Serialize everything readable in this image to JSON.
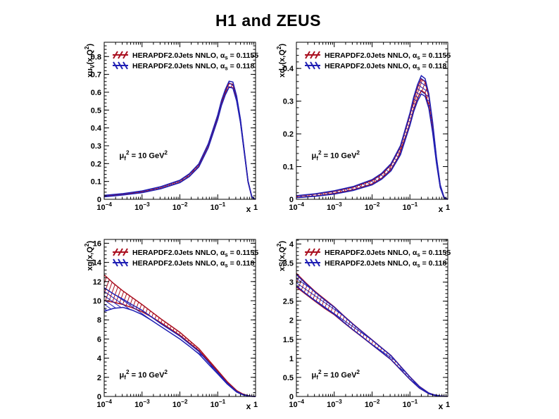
{
  "title": "H1 and ZEUS",
  "colors": {
    "red": "#aa1020",
    "blue": "#2020b4",
    "axis": "#000000",
    "background": "#ffffff"
  },
  "annotation": "μ_{f}^{2} = 10 GeV^{2}",
  "legend_labels": [
    "HERAPDF2.0Jets NNLO,  α_{s} = 0.1155",
    "HERAPDF2.0Jets NNLO,  α_{s} = 0.118"
  ],
  "x_axis": {
    "label": "x",
    "scale": "log",
    "range": [
      0.0001,
      1
    ],
    "ticks_log10": [
      -4,
      -3,
      -2,
      -1,
      0
    ],
    "tick_labels": [
      "10^{−4}",
      "10^{−3}",
      "10^{−2}",
      "10^{−1}",
      "1"
    ]
  },
  "chart_data": [
    {
      "type": "area",
      "name": "xuv",
      "ylabel": "xu_{V}(x,Q^{2})",
      "xlabel": "x",
      "ylim": [
        0,
        0.88
      ],
      "ann_y": 0.72,
      "yticks": [
        0,
        0.1,
        0.2,
        0.3,
        0.4,
        0.5,
        0.6,
        0.7,
        0.8
      ],
      "ytick_labels": [
        "0",
        "0.1",
        "0.2",
        "0.3",
        "0.4",
        "0.5",
        "0.6",
        "0.7",
        "0.8"
      ],
      "x_log10": [
        -4,
        -3.5,
        -3,
        -2.5,
        -2,
        -1.75,
        -1.5,
        -1.25,
        -1,
        -0.9,
        -0.8,
        -0.7,
        -0.6,
        -0.5,
        -0.4,
        -0.3,
        -0.2,
        -0.1,
        -0.05,
        0
      ],
      "series": [
        {
          "name": "alphas-0.1155",
          "color_key": "red",
          "hatch": "fwd",
          "upper": [
            0.02,
            0.03,
            0.045,
            0.069,
            0.104,
            0.14,
            0.195,
            0.307,
            0.468,
            0.548,
            0.606,
            0.649,
            0.644,
            0.57,
            0.446,
            0.274,
            0.102,
            0.016,
            0.004,
            0.001
          ],
          "lower": [
            0.016,
            0.026,
            0.039,
            0.061,
            0.096,
            0.13,
            0.185,
            0.293,
            0.452,
            0.532,
            0.588,
            0.63,
            0.625,
            0.554,
            0.434,
            0.266,
            0.098,
            0.014,
            0.003,
            0.0
          ]
        },
        {
          "name": "alphas-0.118",
          "color_key": "blue",
          "hatch": "back",
          "upper": [
            0.022,
            0.032,
            0.047,
            0.071,
            0.107,
            0.143,
            0.199,
            0.311,
            0.473,
            0.554,
            0.615,
            0.662,
            0.657,
            0.579,
            0.45,
            0.276,
            0.103,
            0.016,
            0.005,
            0.001
          ],
          "lower": [
            0.014,
            0.024,
            0.037,
            0.059,
            0.093,
            0.127,
            0.181,
            0.289,
            0.447,
            0.526,
            0.585,
            0.628,
            0.623,
            0.551,
            0.43,
            0.264,
            0.097,
            0.013,
            0.003,
            0.0
          ]
        }
      ]
    },
    {
      "type": "area",
      "name": "xdv",
      "ylabel": "xd_{V}(x,Q^{2})",
      "xlabel": "x",
      "ylim": [
        0,
        0.48
      ],
      "ann_y": 0.72,
      "yticks": [
        0,
        0.1,
        0.2,
        0.3,
        0.4
      ],
      "ytick_labels": [
        "0",
        "0.1",
        "0.2",
        "0.3",
        "0.4"
      ],
      "x_log10": [
        -4,
        -3.5,
        -3,
        -2.5,
        -2,
        -1.75,
        -1.5,
        -1.25,
        -1,
        -0.9,
        -0.8,
        -0.7,
        -0.6,
        -0.5,
        -0.4,
        -0.3,
        -0.2,
        -0.1,
        -0.05,
        0
      ],
      "series": [
        {
          "name": "alphas-0.1155",
          "color_key": "red",
          "hatch": "fwd",
          "upper": [
            0.01,
            0.016,
            0.024,
            0.037,
            0.057,
            0.076,
            0.105,
            0.159,
            0.257,
            0.304,
            0.341,
            0.368,
            0.359,
            0.314,
            0.23,
            0.126,
            0.043,
            0.007,
            0.003,
            0.0
          ],
          "lower": [
            0.006,
            0.01,
            0.018,
            0.029,
            0.047,
            0.064,
            0.091,
            0.141,
            0.233,
            0.276,
            0.309,
            0.332,
            0.325,
            0.286,
            0.21,
            0.114,
            0.037,
            0.005,
            0.001,
            0.0
          ]
        },
        {
          "name": "alphas-0.118",
          "color_key": "blue",
          "hatch": "back",
          "upper": [
            0.011,
            0.017,
            0.026,
            0.039,
            0.06,
            0.079,
            0.109,
            0.164,
            0.264,
            0.312,
            0.35,
            0.378,
            0.369,
            0.322,
            0.236,
            0.129,
            0.044,
            0.007,
            0.003,
            0.0
          ],
          "lower": [
            0.005,
            0.009,
            0.016,
            0.027,
            0.044,
            0.061,
            0.087,
            0.136,
            0.226,
            0.268,
            0.3,
            0.322,
            0.315,
            0.278,
            0.204,
            0.111,
            0.036,
            0.005,
            0.001,
            0.0
          ]
        }
      ]
    },
    {
      "type": "area",
      "name": "xg",
      "ylabel": "xg(x,Q^{2})",
      "xlabel": "x",
      "ylim": [
        0,
        16.4
      ],
      "ann_y": 0.86,
      "yticks": [
        0,
        2,
        4,
        6,
        8,
        10,
        12,
        14,
        16
      ],
      "ytick_labels": [
        "0",
        "2",
        "4",
        "6",
        "8",
        "10",
        "12",
        "14",
        "16"
      ],
      "x_log10": [
        -4,
        -3.75,
        -3.5,
        -3.25,
        -3,
        -2.75,
        -2.5,
        -2.25,
        -2,
        -1.75,
        -1.5,
        -1.25,
        -1,
        -0.75,
        -0.5,
        -0.35,
        -0.2,
        -0.1,
        0
      ],
      "series": [
        {
          "name": "alphas-0.1155",
          "color_key": "red",
          "hatch": "fwd",
          "upper": [
            12.7,
            11.8,
            11.0,
            10.3,
            9.6,
            8.85,
            8.1,
            7.4,
            6.7,
            5.85,
            5.0,
            3.85,
            2.7,
            1.55,
            0.62,
            0.28,
            0.09,
            0.03,
            0.01
          ],
          "lower": [
            10.0,
            9.85,
            9.6,
            9.25,
            8.85,
            8.3,
            7.7,
            7.05,
            6.4,
            5.6,
            4.8,
            3.7,
            2.55,
            1.45,
            0.55,
            0.24,
            0.07,
            0.02,
            0.0
          ]
        },
        {
          "name": "alphas-0.118",
          "color_key": "blue",
          "hatch": "back",
          "upper": [
            11.35,
            10.7,
            10.15,
            9.55,
            9.0,
            8.3,
            7.6,
            6.95,
            6.3,
            5.5,
            4.7,
            3.6,
            2.5,
            1.4,
            0.52,
            0.22,
            0.07,
            0.02,
            0.01
          ],
          "lower": [
            8.9,
            9.2,
            9.3,
            9.0,
            8.55,
            7.95,
            7.3,
            6.65,
            6.0,
            5.25,
            4.45,
            3.4,
            2.35,
            1.3,
            0.46,
            0.19,
            0.05,
            0.01,
            0.0
          ]
        }
      ]
    },
    {
      "type": "area",
      "name": "xs-sea",
      "ylabel": "xS(x,Q^{2})",
      "xlabel": "x",
      "ylim": [
        0,
        4.12
      ],
      "ann_y": 0.86,
      "yticks": [
        0,
        0.5,
        1,
        1.5,
        2,
        2.5,
        3,
        3.5,
        4
      ],
      "ytick_labels": [
        "0",
        "0.5",
        "1",
        "1.5",
        "2",
        "2.5",
        "3",
        "3.5",
        "4"
      ],
      "x_log10": [
        -4,
        -3.75,
        -3.5,
        -3.25,
        -3,
        -2.75,
        -2.5,
        -2.25,
        -2,
        -1.75,
        -1.5,
        -1.25,
        -1,
        -0.75,
        -0.5,
        -0.35,
        -0.2,
        -0.1,
        0
      ],
      "series": [
        {
          "name": "alphas-0.1155",
          "color_key": "red",
          "hatch": "fwd",
          "upper": [
            3.23,
            2.98,
            2.75,
            2.55,
            2.35,
            2.12,
            1.9,
            1.69,
            1.485,
            1.28,
            1.075,
            0.795,
            0.515,
            0.262,
            0.09,
            0.041,
            0.014,
            0.007,
            0.005
          ],
          "lower": [
            2.87,
            2.68,
            2.49,
            2.31,
            2.145,
            1.94,
            1.74,
            1.55,
            1.355,
            1.16,
            0.965,
            0.705,
            0.445,
            0.218,
            0.07,
            0.029,
            0.009,
            0.004,
            0.002
          ]
        },
        {
          "name": "alphas-0.118",
          "color_key": "blue",
          "hatch": "back",
          "upper": [
            3.2,
            2.96,
            2.73,
            2.53,
            2.34,
            2.11,
            1.89,
            1.685,
            1.48,
            1.275,
            1.07,
            0.79,
            0.51,
            0.258,
            0.088,
            0.04,
            0.014,
            0.007,
            0.005
          ],
          "lower": [
            2.9,
            2.7,
            2.51,
            2.33,
            2.16,
            1.95,
            1.75,
            1.555,
            1.36,
            1.165,
            0.97,
            0.71,
            0.45,
            0.222,
            0.072,
            0.03,
            0.01,
            0.005,
            0.003
          ]
        }
      ]
    }
  ]
}
